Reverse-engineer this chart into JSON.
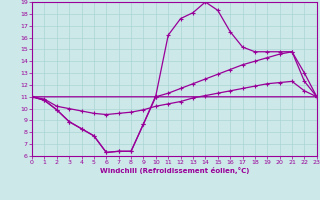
{
  "xlabel": "Windchill (Refroidissement éolien,°C)",
  "xlim": [
    0,
    23
  ],
  "ylim": [
    6,
    19
  ],
  "yticks": [
    6,
    7,
    8,
    9,
    10,
    11,
    12,
    13,
    14,
    15,
    16,
    17,
    18,
    19
  ],
  "xticks": [
    0,
    1,
    2,
    3,
    4,
    5,
    6,
    7,
    8,
    9,
    10,
    11,
    12,
    13,
    14,
    15,
    16,
    17,
    18,
    19,
    20,
    21,
    22,
    23
  ],
  "bg_color": "#cce8e8",
  "line_color": "#990099",
  "grid_color": "#aad4d4",
  "series": {
    "line1_bottom": {
      "x": [
        0,
        1,
        2,
        3,
        4,
        5,
        6,
        7,
        8,
        9,
        10,
        23
      ],
      "y": [
        11.0,
        10.7,
        9.9,
        8.9,
        8.3,
        7.7,
        6.3,
        6.4,
        6.4,
        8.7,
        11.0,
        11.0
      ]
    },
    "line2_peak": {
      "x": [
        0,
        1,
        2,
        3,
        4,
        5,
        6,
        7,
        8,
        9,
        10,
        11,
        12,
        13,
        14,
        15,
        16,
        17,
        18,
        19,
        20,
        21,
        22,
        23
      ],
      "y": [
        11.0,
        10.7,
        9.9,
        8.9,
        8.3,
        7.7,
        6.3,
        6.4,
        6.4,
        8.7,
        11.1,
        16.2,
        17.6,
        18.1,
        19.0,
        18.3,
        16.5,
        15.2,
        14.8,
        14.8,
        14.8,
        14.8,
        12.3,
        11.0
      ]
    },
    "line3_upper": {
      "x": [
        0,
        10,
        11,
        12,
        13,
        14,
        15,
        16,
        17,
        18,
        19,
        20,
        21,
        22,
        23
      ],
      "y": [
        11.0,
        11.0,
        11.3,
        11.7,
        12.1,
        12.5,
        12.9,
        13.3,
        13.7,
        14.0,
        14.3,
        14.6,
        14.8,
        13.0,
        11.0
      ]
    },
    "line4_lower": {
      "x": [
        0,
        1,
        2,
        3,
        4,
        5,
        6,
        7,
        8,
        9,
        10,
        11,
        12,
        13,
        14,
        15,
        16,
        17,
        18,
        19,
        20,
        21,
        22,
        23
      ],
      "y": [
        11.0,
        10.8,
        10.2,
        10.0,
        9.8,
        9.6,
        9.5,
        9.6,
        9.7,
        9.9,
        10.2,
        10.4,
        10.6,
        10.9,
        11.1,
        11.3,
        11.5,
        11.7,
        11.9,
        12.1,
        12.2,
        12.3,
        11.5,
        11.0
      ]
    }
  }
}
